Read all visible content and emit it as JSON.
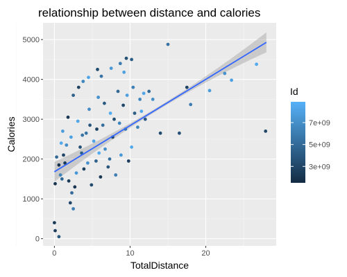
{
  "chart_data": {
    "type": "scatter",
    "title": "relationship between distance and calories",
    "xlabel": "TotalDistance",
    "ylabel": "Calories",
    "xlim": [
      -1.5,
      29.3
    ],
    "ylim": [
      -180,
      5420
    ],
    "x_ticks": [
      0,
      10,
      20
    ],
    "x_tick_labels": [
      "0",
      "10",
      "20"
    ],
    "y_ticks": [
      0,
      1000,
      2000,
      3000,
      4000,
      5000
    ],
    "y_tick_labels": [
      "0",
      "1000",
      "2000",
      "3000",
      "4000",
      "5000"
    ],
    "grid": true,
    "legend": {
      "title": "Id",
      "placement": "right",
      "color_range": [
        1500000000.0,
        8900000000.0
      ],
      "color_low": "#132b43",
      "color_high": "#56b1f7",
      "ticks": [
        3000000000.0,
        5000000000.0,
        7000000000.0
      ],
      "tick_labels": [
        "3e+09",
        "5e+09",
        "7e+09"
      ]
    },
    "smooth": {
      "method": "lm",
      "color": "#3366ff",
      "band_color": "#999999",
      "x_start": 0,
      "x_end": 28,
      "y_start": 1680,
      "y_end": 4930
    },
    "points": [
      [
        0,
        400,
        2200000000.0
      ],
      [
        0.1,
        200,
        2500000000.0
      ],
      [
        0.6,
        50,
        4000000000.0
      ],
      [
        27.9,
        2700,
        3000000000.0
      ],
      [
        15,
        4880,
        5500000000.0
      ],
      [
        26.7,
        4380,
        8500000000.0
      ],
      [
        22.5,
        4150,
        7200000000.0
      ],
      [
        23.4,
        3980,
        8000000000.0
      ],
      [
        20.5,
        3720,
        7800000000.0
      ],
      [
        16.5,
        2650,
        3500000000.0
      ],
      [
        18,
        3370,
        6000000000.0
      ],
      [
        17.5,
        3800,
        2800000000.0
      ],
      [
        14,
        2650,
        3200000000.0
      ],
      [
        13,
        3500,
        7000000000.0
      ],
      [
        12.5,
        3700,
        5000000000.0
      ],
      [
        0.1,
        1380,
        2000000000.0
      ],
      [
        9.5,
        4530,
        3500000000.0
      ],
      [
        10.2,
        4500,
        4200000000.0
      ],
      [
        8.7,
        4400,
        6000000000.0
      ],
      [
        9.2,
        4180,
        8000000000.0
      ],
      [
        7.5,
        4280,
        7500000000.0
      ],
      [
        6.2,
        4080,
        5500000000.0
      ],
      [
        5.7,
        4250,
        3200000000.0
      ],
      [
        4.5,
        4050,
        8200000000.0
      ],
      [
        3.8,
        3950,
        6500000000.0
      ],
      [
        3.2,
        3800,
        2800000000.0
      ],
      [
        2.5,
        3600,
        4500000000.0
      ],
      [
        1.8,
        3050,
        2200000000.0
      ],
      [
        1.1,
        2700,
        7800000000.0
      ],
      [
        11.5,
        3200,
        8500000000.0
      ],
      [
        12,
        3000,
        4000000000.0
      ],
      [
        11,
        2800,
        6500000000.0
      ],
      [
        0.6,
        1850,
        1800000000.0
      ],
      [
        1.2,
        2100,
        3000000000.0
      ],
      [
        1.6,
        2350,
        7000000000.0
      ],
      [
        1.9,
        1450,
        2400000000.0
      ],
      [
        2.1,
        900,
        3000000000.0
      ],
      [
        2.3,
        1150,
        5000000000.0
      ],
      [
        2.5,
        750,
        6200000000.0
      ],
      [
        2.9,
        1650,
        7400000000.0
      ],
      [
        3.1,
        2950,
        8300000000.0
      ],
      [
        3.6,
        2150,
        4400000000.0
      ],
      [
        3.9,
        1750,
        2600000000.0
      ],
      [
        4.2,
        2650,
        5600000000.0
      ],
      [
        4.6,
        3250,
        6800000000.0
      ],
      [
        4.9,
        1350,
        3300000000.0
      ],
      [
        5.2,
        2450,
        8100000000.0
      ],
      [
        5.5,
        1950,
        4600000000.0
      ],
      [
        5.8,
        3550,
        7100000000.0
      ],
      [
        6.1,
        1550,
        2200000000.0
      ],
      [
        6.4,
        2850,
        5200000000.0
      ],
      [
        6.7,
        2250,
        6900000000.0
      ],
      [
        7.1,
        1800,
        3800000000.0
      ],
      [
        7.4,
        3150,
        8600000000.0
      ],
      [
        7.7,
        2550,
        2900000000.0
      ],
      [
        8.1,
        1600,
        6100000000.0
      ],
      [
        8.4,
        3700,
        4900000000.0
      ],
      [
        8.8,
        2100,
        7600000000.0
      ],
      [
        9.1,
        3350,
        3100000000.0
      ],
      [
        9.4,
        2750,
        5900000000.0
      ],
      [
        9.8,
        1950,
        2500000000.0
      ],
      [
        10.2,
        2300,
        8400000000.0
      ],
      [
        10.6,
        3150,
        4300000000.0
      ],
      [
        11.3,
        3500,
        6600000000.0
      ],
      [
        0.3,
        2050,
        5000000000.0
      ],
      [
        0.8,
        1600,
        6500000000.0
      ],
      [
        1.4,
        1900,
        2300000000.0
      ],
      [
        2.2,
        2550,
        8000000000.0
      ],
      [
        3.4,
        2300,
        3600000000.0
      ],
      [
        4.4,
        1900,
        7200000000.0
      ],
      [
        5.6,
        2750,
        2700000000.0
      ],
      [
        6.6,
        3400,
        4100000000.0
      ],
      [
        7.3,
        2000,
        5300000000.0
      ],
      [
        8.6,
        2900,
        6400000000.0
      ],
      [
        9.6,
        3600,
        7900000000.0
      ],
      [
        1.0,
        1500,
        4800000000.0
      ],
      [
        2.7,
        1300,
        2100000000.0
      ],
      [
        3.7,
        2600,
        5500000000.0
      ],
      [
        4.7,
        2850,
        3900000000.0
      ],
      [
        5.9,
        2150,
        8700000000.0
      ],
      [
        7.9,
        3000,
        3400000000.0
      ],
      [
        10.4,
        3800,
        6200000000.0
      ],
      [
        11.8,
        3650,
        8200000000.0
      ],
      [
        0.9,
        2400,
        8500000000.0
      ]
    ]
  }
}
